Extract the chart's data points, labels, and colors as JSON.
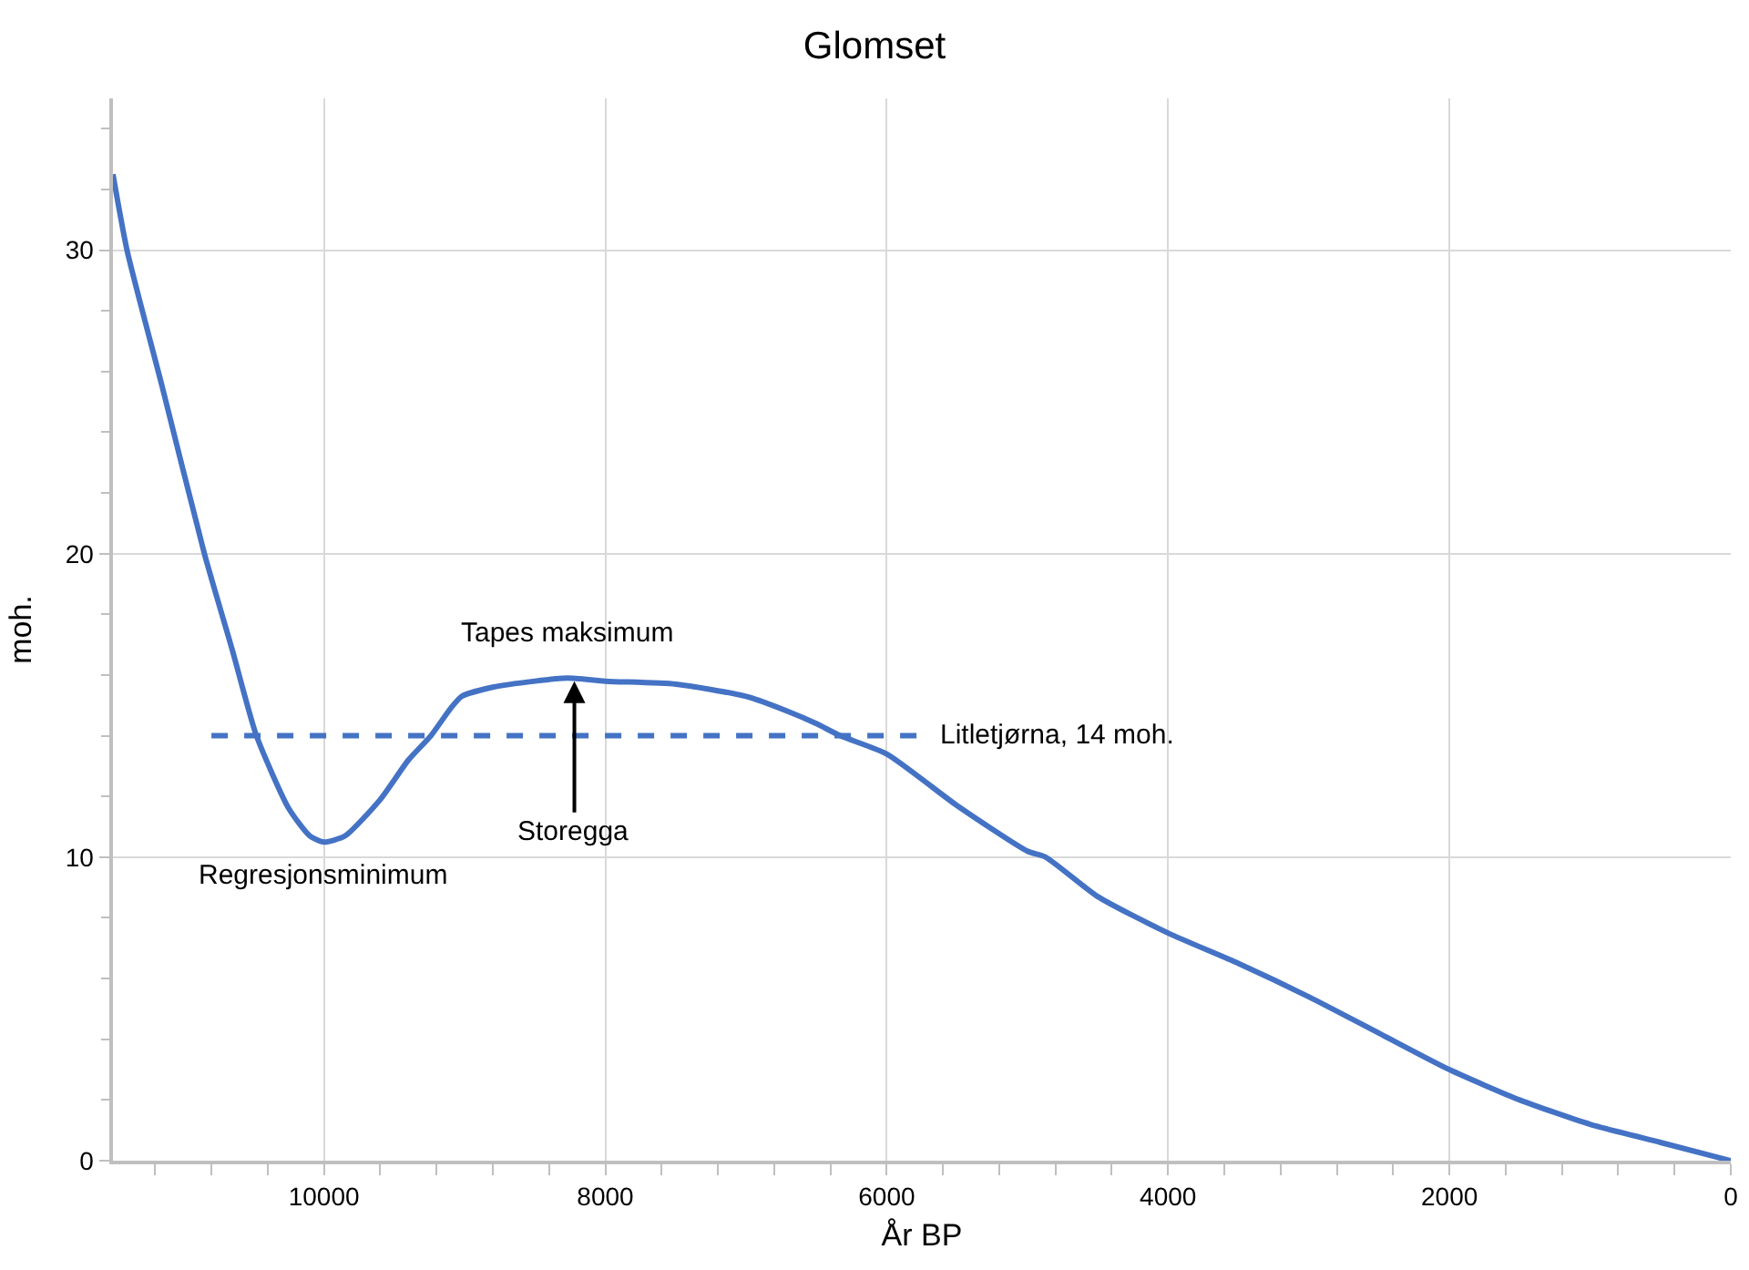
{
  "chart_data": {
    "type": "line",
    "title": "Glomset",
    "xlabel": "År BP",
    "ylabel": "moh.",
    "xlim": [
      11500,
      0
    ],
    "xticks": [
      10000,
      8000,
      6000,
      4000,
      2000,
      0,
      {
        "value": 11200,
        "label": null
      },
      {
        "value": 10800,
        "label": null
      },
      {
        "value": 10400,
        "label": null
      },
      {
        "value": 9600,
        "label": null
      },
      {
        "value": 9200,
        "label": null
      },
      {
        "value": 8800,
        "label": null
      },
      {
        "value": 8400,
        "label": null
      },
      {
        "value": 7600,
        "label": null
      },
      {
        "value": 7200,
        "label": null
      },
      {
        "value": 6800,
        "label": null
      },
      {
        "value": 6400,
        "label": null
      },
      {
        "value": 5600,
        "label": null
      },
      {
        "value": 5200,
        "label": null
      },
      {
        "value": 4800,
        "label": null
      },
      {
        "value": 4400,
        "label": null
      },
      {
        "value": 3600,
        "label": null
      },
      {
        "value": 3200,
        "label": null
      },
      {
        "value": 2800,
        "label": null
      },
      {
        "value": 2400,
        "label": null
      },
      {
        "value": 1600,
        "label": null
      },
      {
        "value": 1200,
        "label": null
      },
      {
        "value": 800,
        "label": null
      },
      {
        "value": 400,
        "label": null
      }
    ],
    "ylim": [
      0,
      35
    ],
    "yticks": [
      0,
      10,
      20,
      30,
      {
        "value": 2,
        "label": null
      },
      {
        "value": 4,
        "label": null
      },
      {
        "value": 6,
        "label": null
      },
      {
        "value": 8,
        "label": null
      },
      {
        "value": 12,
        "label": null
      },
      {
        "value": 14,
        "label": null
      },
      {
        "value": 16,
        "label": null
      },
      {
        "value": 18,
        "label": null
      },
      {
        "value": 22,
        "label": null
      },
      {
        "value": 24,
        "label": null
      },
      {
        "value": 26,
        "label": null
      },
      {
        "value": 28,
        "label": null
      },
      {
        "value": 32,
        "label": null
      },
      {
        "value": 34,
        "label": null
      }
    ],
    "grid": true,
    "legend": false,
    "series": [
      {
        "color": "#4472c4",
        "x": [
          11500,
          11400,
          11150,
          10850,
          10650,
          10480,
          10250,
          10100,
          10000,
          9850,
          9600,
          9400,
          9240,
          9100,
          9020,
          8800,
          8500,
          8270,
          8000,
          7500,
          7000,
          6700,
          6500,
          6330,
          6000,
          5500,
          5000,
          4870,
          4500,
          4000,
          3500,
          3000,
          2500,
          2000,
          1500,
          1000,
          500,
          0
        ],
        "values": [
          32.5,
          30,
          25.5,
          20,
          16.8,
          14,
          11.6,
          10.7,
          10.5,
          10.7,
          11.9,
          13.2,
          14,
          14.9,
          15.3,
          15.6,
          15.8,
          15.9,
          15.8,
          15.7,
          15.3,
          14.8,
          14.4,
          14,
          13.4,
          11.7,
          10.2,
          10,
          8.7,
          7.5,
          6.5,
          5.4,
          4.2,
          3.0,
          2.0,
          1.2,
          0.6,
          0
        ]
      },
      {
        "name": "Litletjørna, 14 moh.",
        "color": "#4472c4",
        "line_style": "dashed",
        "x": [
          10800,
          5750
        ],
        "values": [
          14,
          14
        ]
      }
    ],
    "annotations": [
      {
        "text": "Tapes maksimum",
        "x": 8270,
        "y": 15.9
      },
      {
        "text": "Regresjonsminimum",
        "x": 10000,
        "y": 10.5
      },
      {
        "text": "Storegga",
        "x": 8220,
        "y": 15.8
      }
    ]
  }
}
